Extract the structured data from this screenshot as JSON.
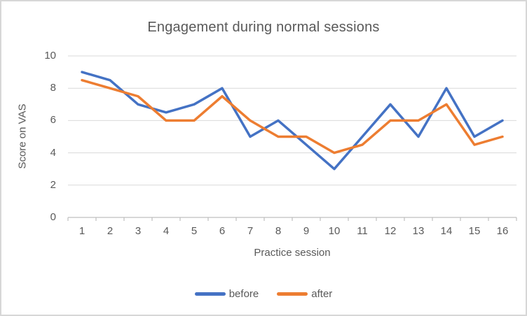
{
  "window": {
    "background": "#ffffff",
    "border_color": "#d7d7d7",
    "text_color": "#595959"
  },
  "chart_data": {
    "type": "line",
    "title": "Engagement during normal sessions",
    "xlabel": "Practice session",
    "ylabel": "Score on VAS",
    "categories": [
      "1",
      "2",
      "3",
      "4",
      "5",
      "6",
      "7",
      "8",
      "9",
      "10",
      "11",
      "12",
      "13",
      "14",
      "15",
      "16"
    ],
    "series": [
      {
        "name": "before",
        "color": "#4472C4",
        "values": [
          9,
          8.5,
          7,
          6.5,
          7,
          8,
          5,
          6,
          4.5,
          3,
          5,
          7,
          5,
          8,
          5,
          6
        ]
      },
      {
        "name": "after",
        "color": "#ED7D31",
        "values": [
          8.5,
          8,
          7.5,
          6,
          6,
          7.5,
          6,
          5,
          5,
          4,
          4.5,
          6,
          6,
          7,
          4.5,
          5
        ]
      }
    ],
    "ylim": [
      0,
      10
    ],
    "y_ticks": [
      0,
      2,
      4,
      6,
      8,
      10
    ],
    "grid": true,
    "legend_position": "bottom",
    "gridline_color": "#D9D9D9",
    "axis_line_color": "#BFBFBF",
    "line_width": 3.5
  }
}
